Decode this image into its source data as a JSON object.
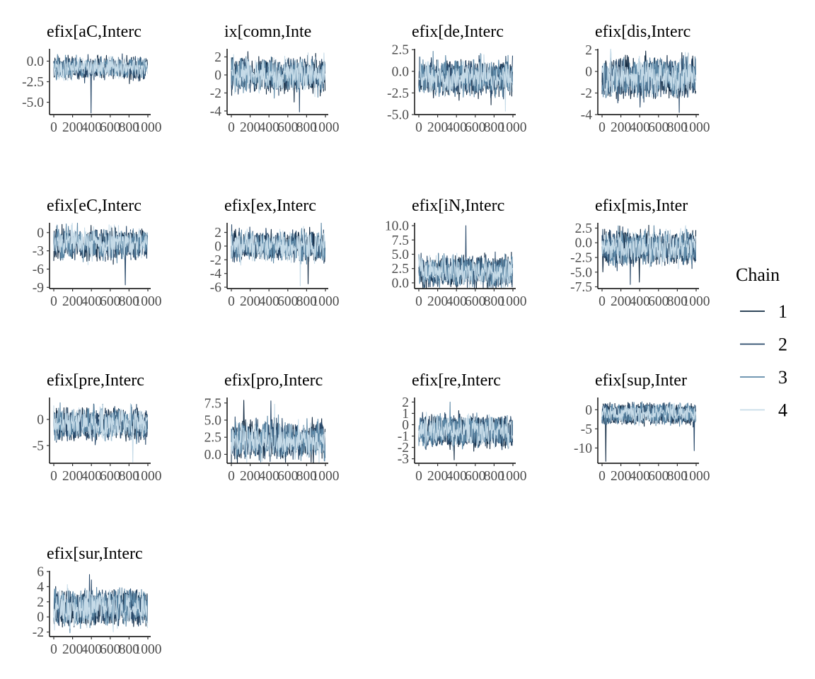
{
  "chart_data": {
    "type": "line",
    "x_ticks": [
      "0",
      "200",
      "400",
      "600",
      "800",
      "1000"
    ],
    "xlim": [
      0,
      1000
    ],
    "grid": false,
    "legend": {
      "title": "Chain",
      "position": "right",
      "entries": [
        "1",
        "2",
        "3",
        "4"
      ]
    },
    "series_colors": {
      "1": "#132b43",
      "2": "#2a4a6b",
      "3": "#5f8aa8",
      "4": "#c6dbe8"
    },
    "panels": [
      {
        "title": "efix[aC,Interc",
        "y_ticks": [
          "0.0",
          "-2.5",
          "-5.0"
        ],
        "y_tick_values": [
          0,
          -2.5,
          -5
        ],
        "ylim": [
          -6.5,
          1.5
        ],
        "center": -0.8,
        "spread": 0.7,
        "offsets": [
          0.55,
          -0.55
        ],
        "spikes": [
          {
            "chain": 2,
            "iter": 395,
            "value": -6.3
          }
        ]
      },
      {
        "title": "ix[comn,Inte",
        "y_ticks": [
          "2",
          "0",
          "-2",
          "-4"
        ],
        "y_tick_values": [
          2,
          0,
          -2,
          -4
        ],
        "ylim": [
          -4.4,
          2.9
        ],
        "center": 0.0,
        "spread": 1.0,
        "offsets": [
          0.9,
          -0.9
        ],
        "spikes": [
          {
            "chain": 2,
            "iter": 725,
            "value": -4.1
          }
        ]
      },
      {
        "title": "efix[de,Interc",
        "y_ticks": [
          "2.5",
          "0.0",
          "-2.5",
          "-5.0"
        ],
        "y_tick_values": [
          2.5,
          0,
          -2.5,
          -5
        ],
        "ylim": [
          -5.0,
          2.6
        ],
        "center": -0.6,
        "spread": 1.0,
        "offsets": [
          0.85,
          -1.2
        ],
        "spikes": [
          {
            "chain": 4,
            "iter": 920,
            "value": -4.6
          }
        ]
      },
      {
        "title": "efix[dis,Interc",
        "y_ticks": [
          "2",
          "0",
          "-2",
          "-4"
        ],
        "y_tick_values": [
          2,
          0,
          -2,
          -4
        ],
        "ylim": [
          -4.0,
          2.1
        ],
        "center": -0.4,
        "spread": 0.9,
        "offsets": [
          0.75,
          -1.1
        ],
        "spikes": [
          {
            "chain": 2,
            "iter": 820,
            "value": -3.8
          }
        ]
      },
      {
        "title": "efix[eC,Interc",
        "y_ticks": [
          "0",
          "-3",
          "-6",
          "-9"
        ],
        "y_tick_values": [
          0,
          -3,
          -6,
          -9
        ],
        "ylim": [
          -9.2,
          1.6
        ],
        "center": -1.6,
        "spread": 1.3,
        "offsets": [
          0.9,
          -1.4
        ],
        "spikes": [
          {
            "chain": 2,
            "iter": 760,
            "value": -8.6
          }
        ]
      },
      {
        "title": "efix[ex,Interc",
        "y_ticks": [
          "2",
          "0",
          "-2",
          "-4",
          "-6"
        ],
        "y_tick_values": [
          2,
          0,
          -2,
          -4,
          -6
        ],
        "ylim": [
          -6.2,
          3.4
        ],
        "center": 0.1,
        "spread": 1.1,
        "offsets": [
          1.0,
          -1.1
        ],
        "spikes": [
          {
            "chain": 4,
            "iter": 730,
            "value": -5.8
          },
          {
            "chain": 1,
            "iter": 815,
            "value": -5.5
          }
        ]
      },
      {
        "title": "efix[iN,Interc",
        "y_ticks": [
          "10.0",
          "7.5",
          "5.0",
          "2.5",
          "0.0"
        ],
        "y_tick_values": [
          10,
          7.5,
          5,
          2.5,
          0
        ],
        "ylim": [
          -1.0,
          10.5
        ],
        "center": 1.9,
        "spread": 1.3,
        "offsets": [
          1.4,
          -1.3
        ],
        "spikes": [
          {
            "chain": 2,
            "iter": 500,
            "value": 10.0
          }
        ]
      },
      {
        "title": "efix[mis,Inter",
        "y_ticks": [
          "2.5",
          "0.0",
          "-2.5",
          "-5.0",
          "-7.5"
        ],
        "y_tick_values": [
          2.5,
          0,
          -2.5,
          -5,
          -7.5
        ],
        "ylim": [
          -7.8,
          3.4
        ],
        "center": -0.4,
        "spread": 1.3,
        "offsets": [
          1.1,
          -2.0
        ],
        "spikes": [
          {
            "chain": 2,
            "iter": 300,
            "value": -7.1
          },
          {
            "chain": 1,
            "iter": 395,
            "value": -6.7
          }
        ]
      },
      {
        "title": "efix[pre,Interc",
        "y_ticks": [
          "0",
          "-5"
        ],
        "y_tick_values": [
          0,
          -5
        ],
        "ylim": [
          -8.4,
          4.2
        ],
        "center": -0.6,
        "spread": 1.5,
        "offsets": [
          1.4,
          -1.8
        ],
        "spikes": [
          {
            "chain": 4,
            "iter": 840,
            "value": -8.2
          }
        ]
      },
      {
        "title": "efix[pro,Interc",
        "y_ticks": [
          "7.5",
          "5.0",
          "2.5",
          "0.0"
        ],
        "y_tick_values": [
          7.5,
          5,
          2.5,
          0
        ],
        "ylim": [
          -1.3,
          8.3
        ],
        "center": 1.8,
        "spread": 1.4,
        "offsets": [
          1.6,
          -1.0
        ],
        "spikes": [
          {
            "chain": 1,
            "iter": 130,
            "value": 7.9
          },
          {
            "chain": 2,
            "iter": 420,
            "value": 7.8
          }
        ]
      },
      {
        "title": "efix[re,Interc",
        "y_ticks": [
          "2",
          "1",
          "0",
          "-1",
          "-2",
          "-3"
        ],
        "y_tick_values": [
          2,
          1,
          0,
          -1,
          -2,
          -3
        ],
        "ylim": [
          -3.4,
          2.4
        ],
        "center": -0.4,
        "spread": 0.6,
        "offsets": [
          0.6,
          -1.0
        ],
        "spikes": [
          {
            "chain": 1,
            "iter": 375,
            "value": -3.1
          },
          {
            "chain": 3,
            "iter": 330,
            "value": 2.0
          }
        ]
      },
      {
        "title": "efix[sup,Inter",
        "y_ticks": [
          "0",
          "-5",
          "-10"
        ],
        "y_tick_values": [
          0,
          -5,
          -10
        ],
        "ylim": [
          -14.0,
          3.2
        ],
        "center": -0.7,
        "spread": 1.0,
        "offsets": [
          1.3,
          -2.0
        ],
        "spikes": [
          {
            "chain": 1,
            "iter": 40,
            "value": -13.5
          },
          {
            "chain": 2,
            "iter": 980,
            "value": -10.7
          }
        ]
      },
      {
        "title": "efix[sur,Interc",
        "y_ticks": [
          "6",
          "4",
          "2",
          "0",
          "-2"
        ],
        "y_tick_values": [
          6,
          4,
          2,
          0,
          -2
        ],
        "ylim": [
          -2.6,
          6.1
        ],
        "center": 1.2,
        "spread": 1.0,
        "offsets": [
          1.4,
          -1.3
        ],
        "spikes": [
          {
            "chain": 2,
            "iter": 380,
            "value": 5.6
          },
          {
            "chain": 3,
            "iter": 170,
            "value": -2.1
          }
        ]
      }
    ]
  }
}
